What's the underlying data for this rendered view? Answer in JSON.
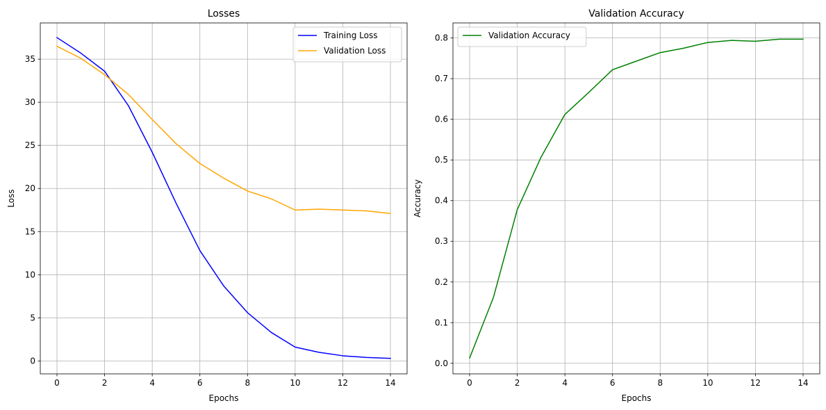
{
  "chart_data": [
    {
      "type": "line",
      "title": "Losses",
      "xlabel": "Epochs",
      "ylabel": "Loss",
      "xlim": [
        -0.7,
        14.7
      ],
      "ylim": [
        -1.5,
        39.2
      ],
      "xticks": [
        0,
        2,
        4,
        6,
        8,
        10,
        12,
        14
      ],
      "yticks": [
        0,
        5,
        10,
        15,
        20,
        25,
        30,
        35
      ],
      "grid": true,
      "legend_position": "top-right",
      "x": [
        0,
        1,
        2,
        3,
        4,
        5,
        6,
        7,
        8,
        9,
        10,
        11,
        12,
        13,
        14
      ],
      "series": [
        {
          "name": "Training Loss",
          "color": "#0000ff",
          "values": [
            37.5,
            35.7,
            33.6,
            29.6,
            24.2,
            18.3,
            12.8,
            8.7,
            5.6,
            3.3,
            1.6,
            1.0,
            0.6,
            0.4,
            0.3
          ]
        },
        {
          "name": "Validation Loss",
          "color": "#ffa500",
          "values": [
            36.5,
            35.1,
            33.2,
            30.9,
            28.0,
            25.2,
            22.9,
            21.2,
            19.7,
            18.8,
            17.5,
            17.6,
            17.5,
            17.4,
            17.1
          ]
        }
      ]
    },
    {
      "type": "line",
      "title": "Validation Accuracy",
      "xlabel": "Epochs",
      "ylabel": "Accuracy",
      "xlim": [
        -0.7,
        14.7
      ],
      "ylim": [
        -0.026,
        0.837
      ],
      "xticks": [
        0,
        2,
        4,
        6,
        8,
        10,
        12,
        14
      ],
      "yticks": [
        0.0,
        0.1,
        0.2,
        0.3,
        0.4,
        0.5,
        0.6,
        0.7,
        0.8
      ],
      "grid": true,
      "legend_position": "top-left",
      "x": [
        0,
        1,
        2,
        3,
        4,
        5,
        6,
        7,
        8,
        9,
        10,
        11,
        12,
        13,
        14
      ],
      "series": [
        {
          "name": "Validation Accuracy",
          "color": "#008000",
          "values": [
            0.013,
            0.162,
            0.378,
            0.507,
            0.612,
            0.666,
            0.722,
            0.743,
            0.764,
            0.775,
            0.789,
            0.794,
            0.792,
            0.797,
            0.797
          ]
        }
      ]
    }
  ]
}
